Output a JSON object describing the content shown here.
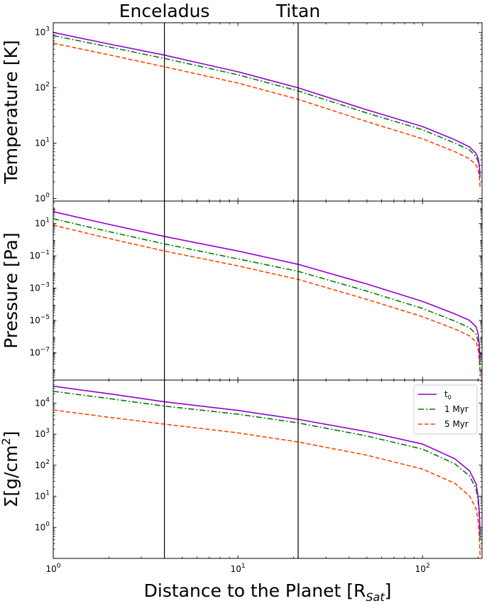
{
  "chart_data": {
    "type": "line",
    "xscale": "log",
    "xlim": [
      1,
      210
    ],
    "xlabel": "Distance to the Planet [R",
    "xlabel_sub": "Sat",
    "xlabel_tail": "]",
    "xticks": [
      {
        "value": 1,
        "base": "10",
        "exp": "0"
      },
      {
        "value": 10,
        "base": "10",
        "exp": "1"
      },
      {
        "value": 100,
        "base": "10",
        "exp": "2"
      }
    ],
    "vlines": [
      {
        "x": 4.0,
        "label": "Enceladus"
      },
      {
        "x": 21.2,
        "label": "Titan"
      }
    ],
    "legend": {
      "location": "upper right of bottom panel",
      "entries": [
        {
          "label": "t",
          "sub": "0",
          "color": "#9400D3",
          "style": "solid"
        },
        {
          "label": "1 Myr",
          "color": "#008000",
          "style": "dashdot"
        },
        {
          "label": "5 Myr",
          "color": "#FF4500",
          "style": "dashed"
        }
      ]
    },
    "x": [
      1,
      2,
      4,
      10,
      21.2,
      50,
      100,
      150,
      180,
      195,
      200,
      203,
      205
    ],
    "panels": [
      {
        "ylabel": "Temperature [K]",
        "yscale": "log",
        "ylim": [
          0.9,
          1500
        ],
        "yticks": [
          {
            "value": 1,
            "base": "10",
            "exp": "0"
          },
          {
            "value": 10,
            "base": "10",
            "exp": "1"
          },
          {
            "value": 100,
            "base": "10",
            "exp": "2"
          },
          {
            "value": 1000,
            "base": "10",
            "exp": "3"
          }
        ],
        "series": [
          {
            "name": "t0",
            "color": "#9400D3",
            "style": "solid",
            "values": [
              1000,
              620,
              390,
              195,
              100,
              40,
              20,
              11.5,
              8.5,
              6.5,
              5.3,
              4.0,
              2.5
            ]
          },
          {
            "name": "1 Myr",
            "color": "#008000",
            "style": "dashdot",
            "values": [
              880,
              550,
              340,
              172,
              88,
              35,
              17.5,
              10,
              7.5,
              5.7,
              4.7,
              3.6,
              2.3
            ]
          },
          {
            "name": "5 Myr",
            "color": "#FF4500",
            "style": "dashed",
            "values": [
              640,
              395,
              240,
              122,
              62,
              24.5,
              12,
              7,
              5.2,
              4,
              3.3,
              2.5,
              1.6
            ]
          }
        ]
      },
      {
        "ylabel": "Pressure [Pa]",
        "yscale": "log",
        "ylim": [
          2e-09,
          250
        ],
        "yticks": [
          {
            "value": 1e-07,
            "base": "10",
            "exp": "−7"
          },
          {
            "value": 1e-05,
            "base": "10",
            "exp": "−5"
          },
          {
            "value": 0.001,
            "base": "10",
            "exp": "−3"
          },
          {
            "value": 0.1,
            "base": "10",
            "exp": "−1"
          },
          {
            "value": 10,
            "base": "10",
            "exp": "1"
          }
        ],
        "series": [
          {
            "name": "t0",
            "color": "#9400D3",
            "style": "solid",
            "values": [
              55,
              9,
              1.6,
              0.2,
              0.03,
              0.0018,
              0.00015,
              2.5e-05,
              1e-05,
              4e-06,
              1.5e-06,
              3e-07,
              3e-08
            ]
          },
          {
            "name": "1 Myr",
            "color": "#008000",
            "style": "dashdot",
            "values": [
              20,
              3.2,
              0.55,
              0.065,
              0.011,
              0.00065,
              5.5e-05,
              9e-06,
              3.5e-06,
              1.4e-06,
              5e-07,
              1e-07,
              1e-08
            ]
          },
          {
            "name": "5 Myr",
            "color": "#FF4500",
            "style": "dashed",
            "values": [
              8,
              1.2,
              0.2,
              0.024,
              0.0035,
              0.0002,
              1.7e-05,
              2.9e-06,
              1.1e-06,
              4.5e-07,
              1.6e-07,
              3.5e-08,
              3.5e-09
            ]
          }
        ]
      },
      {
        "ylabel": "Σ[g/cm",
        "ylabel_sup": "2",
        "ylabel_tail": "]",
        "yscale": "log",
        "ylim": [
          0.1,
          55000
        ],
        "yticks": [
          {
            "value": 1,
            "base": "10",
            "exp": "0"
          },
          {
            "value": 10,
            "base": "10",
            "exp": "1"
          },
          {
            "value": 100,
            "base": "10",
            "exp": "2"
          },
          {
            "value": 1000,
            "base": "10",
            "exp": "3"
          },
          {
            "value": 10000,
            "base": "10",
            "exp": "4"
          }
        ],
        "series": [
          {
            "name": "t0",
            "color": "#9400D3",
            "style": "solid",
            "values": [
              35000,
              20000,
              11000,
              5800,
              3000,
              1200,
              480,
              160,
              65,
              25,
              10,
              3,
              0.6
            ]
          },
          {
            "name": "1 Myr",
            "color": "#008000",
            "style": "dashdot",
            "values": [
              24000,
              14000,
              8000,
              4400,
              2300,
              870,
              330,
              110,
              45,
              17,
              7,
              2,
              0.4
            ]
          },
          {
            "name": "5 Myr",
            "color": "#FF4500",
            "style": "dashed",
            "values": [
              6000,
              3500,
              2100,
              1100,
              560,
              210,
              75,
              26,
              10,
              4,
              1.6,
              0.5,
              0.12
            ]
          }
        ]
      }
    ]
  }
}
